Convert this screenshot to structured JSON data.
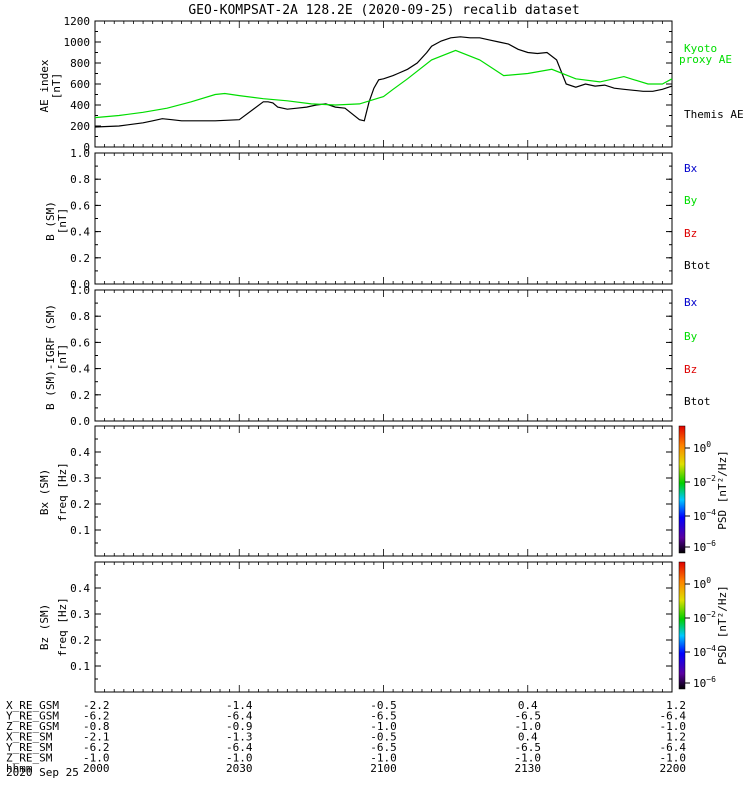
{
  "title": "GEO-KOMPSAT-2A 128.2E (2020-09-25) recalib dataset",
  "colors": {
    "green": "#00dd00",
    "black": "#000000",
    "blue": "#0000cc",
    "red": "#dd0000"
  },
  "panels": {
    "ae": {
      "ylabel": "AE index",
      "yunit": "[nT]",
      "legend": [
        {
          "text": "Kyoto",
          "color": "green"
        },
        {
          "text": "proxy AE",
          "color": "green"
        },
        {
          "text": "Themis AE",
          "color": "black"
        }
      ]
    },
    "b": {
      "ylabel": "B (SM)",
      "yunit": "[nT]",
      "legend": [
        {
          "text": "Bx",
          "color": "blue"
        },
        {
          "text": "By",
          "color": "green"
        },
        {
          "text": "Bz",
          "color": "red"
        },
        {
          "text": "Btot",
          "color": "black"
        }
      ]
    },
    "bd": {
      "ylabel": "B (SM)-IGRF (SM)",
      "yunit": "[nT]",
      "legend": [
        {
          "text": "Bx",
          "color": "blue"
        },
        {
          "text": "By",
          "color": "green"
        },
        {
          "text": "Bz",
          "color": "red"
        },
        {
          "text": "Btot",
          "color": "black"
        }
      ]
    },
    "bx": {
      "ylabel": "Bx (SM)",
      "yunit": "freq [Hz]",
      "cbar_label": "PSD [nT²/Hz]",
      "cbar_ticks": [
        {
          "base": "10",
          "exp": "0"
        },
        {
          "base": "10",
          "exp": "−2"
        },
        {
          "base": "10",
          "exp": "−4"
        },
        {
          "base": "10",
          "exp": "−6"
        }
      ]
    },
    "bz": {
      "ylabel": "Bz (SM)",
      "yunit": "freq [Hz]",
      "cbar_label": "PSD [nT²/Hz]",
      "cbar_ticks": [
        {
          "base": "10",
          "exp": "0"
        },
        {
          "base": "10",
          "exp": "−2"
        },
        {
          "base": "10",
          "exp": "−4"
        },
        {
          "base": "10",
          "exp": "−6"
        }
      ]
    }
  },
  "xaxis": {
    "row_labels": [
      "X_RE_GSM",
      "Y_RE_GSM",
      "Z_RE_GSM",
      "X_RE_SM",
      "Y_RE_SM",
      "Z_RE_SM",
      "hhmm"
    ],
    "columns": [
      [
        "-2.2",
        "-6.2",
        "-0.8",
        "-2.1",
        "-6.2",
        "-1.0",
        "2000"
      ],
      [
        "-1.4",
        "-6.4",
        "-0.9",
        "-1.3",
        "-6.4",
        "-1.0",
        "2030"
      ],
      [
        "-0.5",
        "-6.5",
        "-1.0",
        "-0.5",
        "-6.5",
        "-1.0",
        "2100"
      ],
      [
        "0.4",
        "-6.5",
        "-1.0",
        "0.4",
        "-6.5",
        "-1.0",
        "2130"
      ],
      [
        "1.2",
        "-6.4",
        "-1.0",
        "1.2",
        "-6.4",
        "-1.0",
        "2200"
      ]
    ],
    "date": "2020 Sep 25"
  },
  "chart_data": [
    {
      "type": "line",
      "ylabel": "AE index [nT]",
      "ylim": [
        0,
        1200
      ],
      "yticks": [
        0,
        200,
        400,
        600,
        800,
        1000,
        1200
      ],
      "xlim": [
        0,
        120
      ],
      "series": [
        {
          "name": "Themis AE",
          "color": "black",
          "x": [
            0,
            5,
            10,
            12,
            14,
            16,
            18,
            20,
            22,
            25,
            30,
            35,
            36,
            37,
            38,
            40,
            42,
            44,
            46,
            48,
            50,
            52,
            55,
            56,
            57,
            58,
            59,
            60,
            62,
            63,
            65,
            67,
            69,
            70,
            72,
            74,
            76,
            78,
            80,
            82,
            84,
            86,
            88,
            90,
            92,
            94,
            96,
            98,
            100,
            102,
            104,
            106,
            108,
            110,
            112,
            114,
            116,
            118,
            120
          ],
          "y": [
            190,
            200,
            230,
            250,
            270,
            260,
            250,
            250,
            250,
            250,
            260,
            430,
            430,
            420,
            380,
            360,
            370,
            380,
            400,
            410,
            380,
            370,
            260,
            250,
            430,
            560,
            640,
            650,
            680,
            700,
            740,
            800,
            900,
            960,
            1010,
            1040,
            1050,
            1040,
            1040,
            1020,
            1000,
            980,
            930,
            900,
            890,
            900,
            830,
            600,
            570,
            600,
            580,
            590,
            560,
            550,
            540,
            530,
            530,
            550,
            580
          ]
        },
        {
          "name": "Kyoto proxy AE",
          "color": "green",
          "x": [
            0,
            5,
            10,
            15,
            20,
            25,
            27,
            30,
            35,
            40,
            45,
            50,
            55,
            60,
            62,
            65,
            70,
            75,
            80,
            85,
            90,
            95,
            100,
            105,
            110,
            115,
            118,
            120
          ],
          "y": [
            280,
            300,
            330,
            370,
            430,
            500,
            510,
            490,
            460,
            440,
            410,
            400,
            410,
            480,
            550,
            650,
            830,
            920,
            830,
            680,
            700,
            740,
            650,
            620,
            670,
            600,
            600,
            650
          ]
        }
      ]
    },
    {
      "type": "line",
      "ylabel": "B (SM) [nT]",
      "ylim": [
        0.0,
        1.0
      ],
      "yticks": [
        0.0,
        0.2,
        0.4,
        0.6,
        0.8,
        1.0
      ],
      "series": []
    },
    {
      "type": "line",
      "ylabel": "B (SM)-IGRF (SM) [nT]",
      "ylim": [
        0.0,
        1.0
      ],
      "yticks": [
        0.0,
        0.2,
        0.4,
        0.6,
        0.8,
        1.0
      ],
      "series": []
    },
    {
      "type": "heatmap",
      "ylabel": "Bx (SM) freq [Hz]",
      "ylim": [
        0.0,
        0.5
      ],
      "yticks": [
        0.1,
        0.2,
        0.3,
        0.4
      ],
      "values": []
    },
    {
      "type": "heatmap",
      "ylabel": "Bz (SM) freq [Hz]",
      "ylim": [
        0.0,
        0.5
      ],
      "yticks": [
        0.1,
        0.2,
        0.3,
        0.4
      ],
      "values": []
    }
  ]
}
